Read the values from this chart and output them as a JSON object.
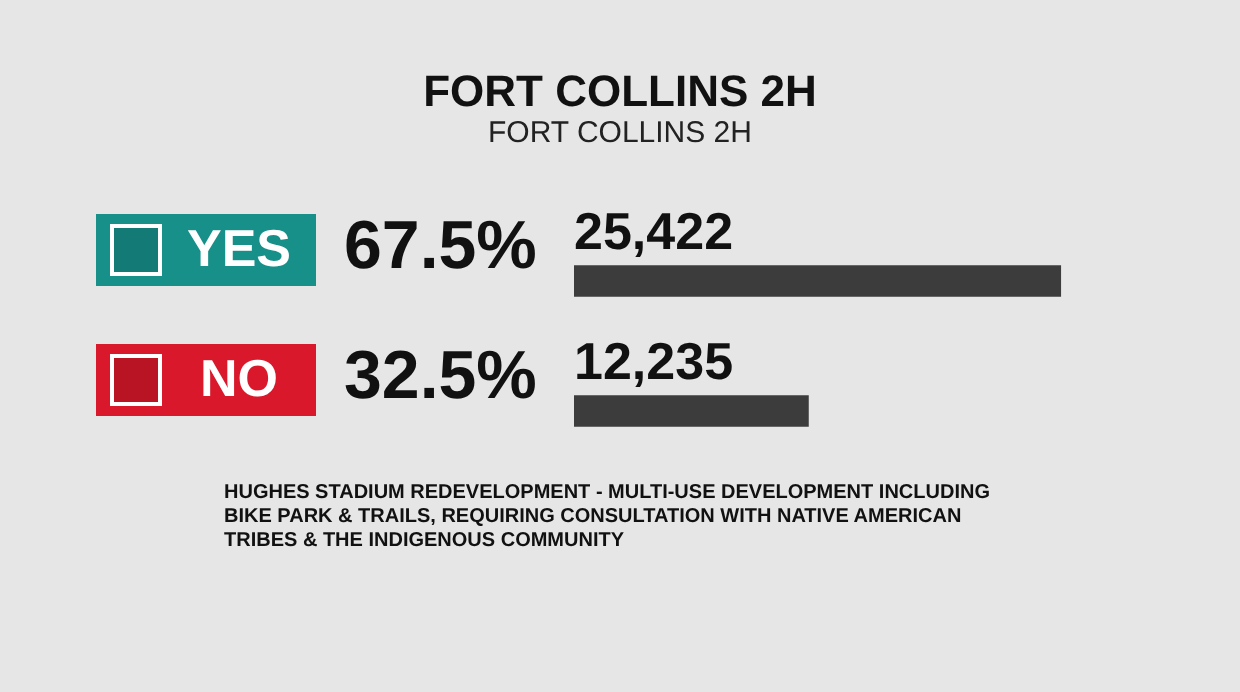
{
  "chart_data": {
    "type": "bar",
    "orientation": "horizontal",
    "title": "FORT COLLINS 2H",
    "subtitle": "FORT COLLINS 2H",
    "categories": [
      "YES",
      "NO"
    ],
    "values": [
      25422,
      12235
    ],
    "value_labels": [
      "25,422",
      "12,235"
    ],
    "colors": [
      "#3c3c3c",
      "#3c3c3c"
    ],
    "annotations": [
      "67.5%",
      "32.5%",
      "HUGHES STADIUM REDEVELOPMENT - MULTI-USE DEVELOPMENT INCLUDING BIKE PARK & TRAILS, REQUIRING CONSULTATION WITH NATIVE AMERICAN TRIBES & THE INDIGENOUS COMMUNITY"
    ],
    "legend": false
  }
}
